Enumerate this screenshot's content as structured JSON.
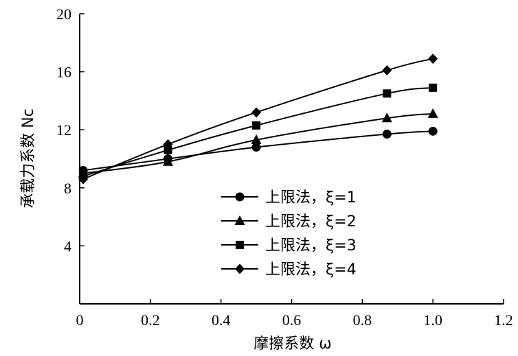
{
  "chart_data": {
    "type": "line",
    "xlabel": "摩擦系数 ω",
    "ylabel": "承载力系数 Nc",
    "xlim": [
      0,
      1.2
    ],
    "ylim": [
      0,
      20
    ],
    "xticks": [
      "0",
      "0.2",
      "0.4",
      "0.6",
      "0.8",
      "1.0",
      "1.2"
    ],
    "yticks": [
      "4",
      "8",
      "12",
      "16",
      "20"
    ],
    "grid": false,
    "legend": "center-right",
    "series": [
      {
        "name": "上限法，ξ=1",
        "marker": "circle",
        "x": [
          0.01,
          0.25,
          0.5,
          0.87,
          1.0
        ],
        "y": [
          9.2,
          10.0,
          10.8,
          11.7,
          11.9
        ]
      },
      {
        "name": "上限法，ξ=2",
        "marker": "triangle",
        "x": [
          0.01,
          0.25,
          0.5,
          0.87,
          1.0
        ],
        "y": [
          9.0,
          9.8,
          11.3,
          12.8,
          13.1
        ]
      },
      {
        "name": "上限法，ξ=3",
        "marker": "square",
        "x": [
          0.01,
          0.25,
          0.5,
          0.87,
          1.0
        ],
        "y": [
          8.8,
          10.6,
          12.3,
          14.5,
          14.9
        ]
      },
      {
        "name": "上限法，ξ=4",
        "marker": "diamond",
        "x": [
          0.01,
          0.25,
          0.5,
          0.87,
          1.0
        ],
        "y": [
          8.6,
          11.0,
          13.2,
          16.1,
          16.9
        ]
      }
    ]
  }
}
